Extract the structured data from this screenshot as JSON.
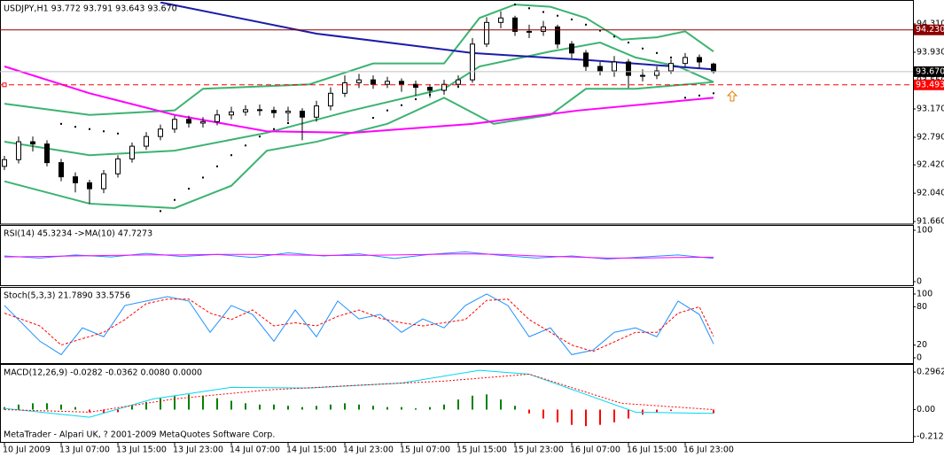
{
  "chart_data": [
    {
      "type": "candlestick",
      "title": "USDJPY,H1  93.772 93.791 93.643 93.670",
      "x": [
        0,
        2,
        4,
        6,
        8,
        10,
        12,
        14,
        16,
        18,
        20,
        22,
        24,
        26,
        28,
        30,
        32,
        34,
        36,
        38,
        40,
        42,
        44,
        46,
        48,
        50,
        52,
        54,
        56,
        58,
        60,
        62,
        64,
        66,
        68,
        70,
        72,
        74,
        76,
        78,
        80,
        82,
        84,
        86,
        88,
        90,
        92,
        94,
        96,
        98,
        100
      ],
      "open": [
        92.4,
        92.49,
        92.73,
        92.7,
        92.45,
        92.26,
        92.18,
        92.1,
        92.3,
        92.5,
        92.67,
        92.8,
        92.9,
        93.03,
        92.98,
        93.0,
        93.09,
        93.13,
        93.16,
        93.15,
        93.12,
        93.14,
        93.06,
        93.21,
        93.38,
        93.52,
        93.56,
        93.5,
        93.54,
        93.5,
        93.46,
        93.42,
        93.5,
        93.56,
        94.04,
        94.33,
        94.39,
        94.21,
        94.21,
        94.27,
        94.04,
        93.92,
        93.74,
        93.68,
        93.8,
        93.62,
        93.62,
        93.68,
        93.78,
        93.86,
        93.772
      ],
      "high": [
        92.54,
        92.8,
        92.8,
        92.75,
        92.5,
        92.32,
        92.22,
        92.35,
        92.55,
        92.72,
        92.86,
        92.96,
        93.08,
        93.08,
        93.06,
        93.16,
        93.2,
        93.22,
        93.23,
        93.2,
        93.2,
        93.18,
        93.28,
        93.46,
        93.62,
        93.64,
        93.62,
        93.6,
        93.58,
        93.55,
        93.5,
        93.56,
        93.62,
        94.12,
        94.4,
        94.48,
        94.42,
        94.3,
        94.35,
        94.3,
        94.08,
        93.96,
        93.8,
        93.88,
        93.84,
        93.7,
        93.74,
        93.84,
        93.92,
        93.9,
        93.791
      ],
      "low": [
        92.35,
        92.44,
        92.6,
        92.4,
        92.2,
        92.05,
        91.9,
        92.04,
        92.25,
        92.45,
        92.62,
        92.75,
        92.85,
        92.92,
        92.92,
        92.95,
        93.03,
        93.08,
        93.08,
        93.05,
        93.0,
        92.75,
        93.0,
        93.15,
        93.33,
        93.45,
        93.44,
        93.45,
        93.4,
        93.35,
        93.32,
        93.36,
        93.45,
        93.52,
        94.0,
        94.25,
        94.15,
        94.12,
        94.15,
        93.98,
        93.85,
        93.68,
        93.62,
        93.6,
        93.45,
        93.54,
        93.57,
        93.64,
        93.74,
        93.72,
        93.643
      ],
      "close": [
        92.49,
        92.73,
        92.7,
        92.45,
        92.26,
        92.18,
        92.1,
        92.3,
        92.5,
        92.67,
        92.8,
        92.9,
        93.03,
        92.98,
        93.0,
        93.09,
        93.13,
        93.16,
        93.15,
        93.12,
        93.14,
        93.06,
        93.21,
        93.38,
        93.52,
        93.56,
        93.5,
        93.54,
        93.5,
        93.46,
        93.42,
        93.5,
        93.56,
        94.04,
        94.33,
        94.39,
        94.21,
        94.21,
        94.27,
        94.04,
        93.92,
        93.74,
        93.68,
        93.8,
        93.62,
        93.62,
        93.68,
        93.78,
        93.86,
        93.8,
        93.67
      ],
      "bull_color": "#ffffff",
      "bear_color": "#000000",
      "xlim": [
        -0.625,
        128.125
      ],
      "ylim": [
        91.638,
        94.607
      ],
      "yticks": [
        {
          "value": 94.31,
          "label": "94.310"
        },
        {
          "value": 93.93,
          "label": "93.930"
        },
        {
          "value": 93.55,
          "label": "93.550"
        },
        {
          "value": 93.17,
          "label": "93.170"
        },
        {
          "value": 92.79,
          "label": "92.790"
        },
        {
          "value": 92.42,
          "label": "92.420"
        },
        {
          "value": 92.04,
          "label": "92.040"
        },
        {
          "value": 91.66,
          "label": "91.660"
        }
      ],
      "lines": [
        {
          "color": "#3cb371",
          "x": [
            0,
            12,
            24,
            28,
            43,
            52,
            62,
            67,
            72,
            77,
            82,
            87,
            92,
            96,
            100
          ],
          "values": [
            93.24,
            93.09,
            93.15,
            93.44,
            93.5,
            93.78,
            93.78,
            94.39,
            94.57,
            94.54,
            94.39,
            94.1,
            94.13,
            94.21,
            93.94
          ]
        },
        {
          "color": "#3cb371",
          "x": [
            0,
            12,
            24,
            37,
            49,
            62,
            67,
            77,
            84,
            89,
            95,
            100
          ],
          "values": [
            92.73,
            92.55,
            92.61,
            92.85,
            93.15,
            93.44,
            93.74,
            93.94,
            94.06,
            93.86,
            93.74,
            93.53
          ]
        },
        {
          "color": "#3cb371",
          "x": [
            0,
            12,
            24,
            32,
            37,
            44,
            54,
            62,
            69,
            77,
            82,
            89,
            100
          ],
          "values": [
            92.2,
            91.9,
            91.84,
            92.14,
            92.61,
            92.73,
            92.97,
            93.32,
            92.97,
            93.09,
            93.44,
            93.44,
            93.53
          ]
        },
        {
          "color": "#ff00ff",
          "x": [
            0,
            12,
            24,
            37,
            49,
            66,
            81,
            100
          ],
          "values": [
            93.74,
            93.38,
            93.09,
            92.87,
            92.85,
            92.97,
            93.15,
            93.32
          ]
        },
        {
          "color": "#1c1ca8",
          "x": [
            22,
            44,
            66,
            83,
            100
          ],
          "values": [
            94.6,
            94.18,
            93.92,
            93.82,
            93.7
          ]
        }
      ],
      "sar": {
        "color": "#000000",
        "x": [
          8,
          10,
          12,
          14,
          16,
          22,
          24,
          26,
          28,
          30,
          32,
          34,
          36,
          38,
          40,
          52,
          54,
          56,
          58,
          60,
          62,
          64,
          72,
          74,
          76,
          78,
          80,
          82,
          84,
          86,
          88,
          90,
          92,
          94,
          96,
          98,
          100
        ],
        "values": [
          92.97,
          92.93,
          92.9,
          92.87,
          92.84,
          91.8,
          91.95,
          92.1,
          92.25,
          92.4,
          92.55,
          92.68,
          92.8,
          92.9,
          92.98,
          93.05,
          93.15,
          93.22,
          93.3,
          93.36,
          93.42,
          93.47,
          94.57,
          94.52,
          94.47,
          94.42,
          94.37,
          94.3,
          94.22,
          94.14,
          94.06,
          93.98,
          93.92,
          93.86,
          93.32,
          93.35,
          93.38
        ]
      },
      "levels": [
        {
          "value": 94.23,
          "label": "94.230",
          "color": "#8b0000",
          "style": "solid"
        },
        {
          "value": 93.493,
          "label": "93.493",
          "color": "#ff0000",
          "style": "dashed"
        }
      ],
      "last_price": {
        "value": 93.67,
        "label": "93.670",
        "color": "#000000"
      }
    },
    {
      "type": "line",
      "title": "RSI(14) 45.3234  ->MA(10) 47.7273",
      "x": [
        0,
        5,
        10,
        15,
        20,
        25,
        30,
        35,
        40,
        45,
        50,
        55,
        60,
        65,
        70,
        75,
        80,
        85,
        90,
        95,
        100
      ],
      "series": [
        {
          "color": "#1e90ff",
          "values": [
            50,
            46,
            52,
            48,
            55,
            49,
            53,
            47,
            56,
            50,
            54,
            45,
            53,
            58,
            51,
            46,
            50,
            44,
            48,
            52,
            45.3234
          ]
        },
        {
          "color": "#ff00ff",
          "values": [
            48,
            49,
            50,
            51,
            52,
            52,
            53,
            53,
            52,
            51,
            51,
            52,
            53,
            54,
            53,
            50,
            48,
            46,
            46,
            47,
            47.7273
          ]
        }
      ],
      "xlim": [
        -0.625,
        128.125
      ],
      "ylim": [
        -6.9,
        106.9
      ],
      "yticks": [
        100,
        0
      ]
    },
    {
      "type": "line",
      "title": "Stoch(5,3,3) 21.7890 33.5756",
      "x": [
        0,
        5,
        8,
        11,
        14,
        17,
        20,
        23,
        26,
        29,
        32,
        35,
        38,
        41,
        44,
        47,
        50,
        53,
        56,
        59,
        62,
        65,
        68,
        71,
        74,
        77,
        80,
        83,
        86,
        89,
        92,
        95,
        98,
        100
      ],
      "series": [
        {
          "color": "#1e90ff",
          "values": [
            82,
            26,
            5,
            47,
            33,
            82,
            89,
            96,
            89,
            40,
            82,
            68,
            26,
            75,
            33,
            89,
            61,
            68,
            40,
            61,
            47,
            82,
            100,
            82,
            33,
            47,
            5,
            12,
            40,
            47,
            33,
            89,
            68,
            21.789
          ]
        },
        {
          "color": "#ff0000",
          "dash": true,
          "values": [
            70,
            50,
            20,
            30,
            40,
            60,
            85,
            92,
            92,
            70,
            60,
            75,
            50,
            55,
            50,
            65,
            75,
            62,
            55,
            50,
            55,
            60,
            90,
            92,
            60,
            40,
            20,
            10,
            25,
            40,
            40,
            70,
            80,
            33.5756
          ]
        }
      ],
      "xlim": [
        -0.625,
        128.125
      ],
      "ylim": [
        -8.3,
        108.3
      ],
      "yticks": [
        100,
        80,
        20,
        0
      ]
    },
    {
      "type": "bar",
      "title": "MACD(12,26,9) -0.0282 -0.0362 0.0080 0.0000",
      "x": [
        0,
        2,
        4,
        6,
        8,
        10,
        12,
        14,
        16,
        18,
        20,
        22,
        24,
        26,
        28,
        30,
        32,
        34,
        36,
        38,
        40,
        42,
        44,
        46,
        48,
        50,
        52,
        54,
        56,
        58,
        60,
        62,
        64,
        66,
        68,
        70,
        72,
        74,
        76,
        78,
        80,
        82,
        84,
        86,
        88,
        90,
        92,
        94,
        96,
        98,
        100
      ],
      "values": [
        0.02,
        0.04,
        0.05,
        0.05,
        0.04,
        0.02,
        -0.02,
        -0.03,
        -0.02,
        0.03,
        0.06,
        0.09,
        0.11,
        0.12,
        0.11,
        0.09,
        0.07,
        0.05,
        0.04,
        0.04,
        0.03,
        0.02,
        0.03,
        0.04,
        0.05,
        0.04,
        0.03,
        0.02,
        0.02,
        0.01,
        0.02,
        0.04,
        0.08,
        0.11,
        0.12,
        0.08,
        0.03,
        -0.03,
        -0.07,
        -0.1,
        -0.12,
        -0.13,
        -0.12,
        -0.1,
        -0.07,
        -0.04,
        -0.02,
        -0.01,
        0.0,
        0.0,
        -0.0282
      ],
      "pos_color": "#008000",
      "neg_color": "#ff0000",
      "lines": [
        {
          "color": "#00d8f0",
          "x": [
            0,
            12,
            21,
            32,
            43,
            56,
            67,
            74,
            82,
            89,
            100
          ],
          "values": [
            0.01,
            -0.06,
            0.085,
            0.176,
            0.17,
            0.21,
            0.31,
            0.28,
            0.12,
            -0.02,
            -0.03
          ]
        },
        {
          "color": "#ff0000",
          "dash": true,
          "x": [
            0,
            12,
            24,
            37,
            49,
            62,
            74,
            87,
            100
          ],
          "values": [
            0,
            -0.02,
            0.085,
            0.155,
            0.19,
            0.225,
            0.28,
            0.05,
            0.0
          ]
        }
      ],
      "xlim": [
        -0.625,
        128.125
      ],
      "ylim": [
        -0.255,
        0.346
      ],
      "yticks": [
        0.2962,
        {
          "value": 0,
          "label": "0.00"
        },
        -0.2125
      ],
      "xticks": [
        {
          "value": 0,
          "label": "10 Jul 2009"
        },
        {
          "value": 8,
          "label": "13 Jul 07:00"
        },
        {
          "value": 16,
          "label": "13 Jul 15:00"
        },
        {
          "value": 24,
          "label": "13 Jul 23:00"
        },
        {
          "value": 32,
          "label": "14 Jul 07:00"
        },
        {
          "value": 40,
          "label": "14 Jul 15:00"
        },
        {
          "value": 48,
          "label": "14 Jul 23:00"
        },
        {
          "value": 56,
          "label": "15 Jul 07:00"
        },
        {
          "value": 64,
          "label": "15 Jul 15:00"
        },
        {
          "value": 72,
          "label": "15 Jul 23:00"
        },
        {
          "value": 80,
          "label": "16 Jul 07:00"
        },
        {
          "value": 88,
          "label": "16 Jul 15:00"
        },
        {
          "value": 96,
          "label": "16 Jul 23:00"
        }
      ]
    }
  ],
  "footer": "MetaTrader - Alpari UK, ? 2001-2009 MetaQuotes Software Corp."
}
